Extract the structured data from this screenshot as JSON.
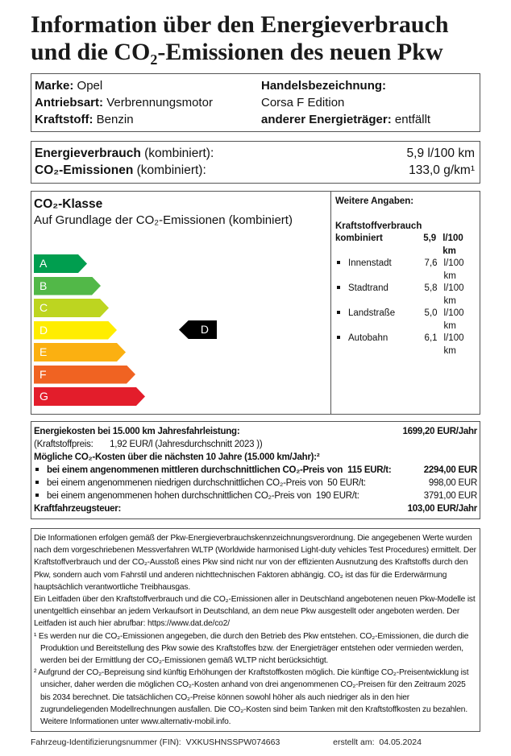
{
  "title": {
    "line1": "Information über den Energieverbrauch",
    "line2": "und die CO₂-Emissionen des neuen Pkw"
  },
  "vehicle": {
    "marke_label": "Marke:",
    "marke": "Opel",
    "antrieb_label": "Antriebsart:",
    "antrieb": "Verbrennungsmotor",
    "kraftstoff_label": "Kraftstoff:",
    "kraftstoff": "Benzin",
    "handels_label": "Handelsbezeichnung:",
    "handels": "Corsa F Edition",
    "anderer_label": "anderer Energieträger:",
    "anderer": "entfällt"
  },
  "summary": {
    "energie_label": "Energieverbrauch",
    "energie_suffix": "(kombiniert):",
    "energie_value": "5,9",
    "energie_unit": "l/100 km",
    "co2_label": "CO₂-Emissionen",
    "co2_suffix": "(kombiniert):",
    "co2_value": "133,0",
    "co2_unit": "g/km¹"
  },
  "co2_class": {
    "heading": "CO₂-Klasse",
    "subheading": "Auf Grundlage der CO₂-Emissionen (kombiniert)",
    "classes": [
      {
        "label": "A",
        "color": "#009e4f"
      },
      {
        "label": "B",
        "color": "#52b848"
      },
      {
        "label": "C",
        "color": "#bdd520"
      },
      {
        "label": "D",
        "color": "#ffed00"
      },
      {
        "label": "E",
        "color": "#fbb011"
      },
      {
        "label": "F",
        "color": "#f06322"
      },
      {
        "label": "G",
        "color": "#e31d2b"
      }
    ],
    "current": "D"
  },
  "weitere": {
    "heading": "Weitere Angaben:",
    "sub": "Kraftstoffverbrauch",
    "kombiniert_label": "kombiniert",
    "kombiniert_value": "5,9",
    "kombiniert_unit": "l/100 km",
    "items": [
      {
        "label": "Innenstadt",
        "value": "7,6",
        "unit": "l/100 km"
      },
      {
        "label": "Stadtrand",
        "value": "5,8",
        "unit": "l/100 km"
      },
      {
        "label": "Landstraße",
        "value": "5,0",
        "unit": "l/100 km"
      },
      {
        "label": "Autobahn",
        "value": "6,1",
        "unit": "l/100 km"
      }
    ]
  },
  "costs": {
    "energiekosten_label": "Energiekosten bei 15.000 km Jahresfahrleistung:",
    "energiekosten_value": "1699,20 EUR/Jahr",
    "preis_label": "(Kraftstoffpreis:",
    "preis_value": "1,92 EUR/l (Jahresdurchschnitt 2023 ))",
    "co2_heading": "Mögliche CO₂-Kosten über die nächsten 10 Jahre (15.000 km/Jahr):²",
    "scenarios": [
      {
        "text": "bei einem angenommenen mittleren durchschnittlichen CO₂-Preis von",
        "price": "115",
        "unit": "EUR/t:",
        "value": "2294,00 EUR"
      },
      {
        "text": "bei einem angenommenen niedrigen durchschnittlichen CO₂-Preis von",
        "price": "50",
        "unit": "EUR/t:",
        "value": "998,00 EUR"
      },
      {
        "text": "bei einem angenommenen hohen durchschnittlichen CO₂-Preis von",
        "price": "190",
        "unit": "EUR/t:",
        "value": "3791,00 EUR"
      }
    ],
    "steuer_label": "Kraftfahrzeugsteuer:",
    "steuer_value": "103,00 EUR/Jahr"
  },
  "info": {
    "p1": "Die Informationen erfolgen gemäß der Pkw-Energieverbrauchskennzeichnungsverordnung. Die angegebenen Werte wurden nach dem vorgeschriebenen Messverfahren WLTP (Worldwide harmonised Light-duty vehicles Test Procedures) ermittelt. Der Kraftstoffverbrauch und der CO₂-Ausstoß eines Pkw sind nicht nur von der effizienten Ausnutzung des Kraftstoffs durch den Pkw, sondern auch vom Fahrstil und anderen nichttechnischen Faktoren abhängig. CO₂ ist das für die Erderwärmung hauptsächlich verantwortliche Treibhausgas.",
    "p2": "Ein Leitfaden über den Kraftstoffverbrauch und die CO₂-Emissionen aller in Deutschland angebotenen neuen Pkw-Modelle ist unentgeltlich einsehbar an jedem Verkaufsort in Deutschland, an dem neue Pkw ausgestellt oder angeboten werden. Der Leitfaden ist auch hier abrufbar:  https://www.dat.de/co2/",
    "fn1": "¹ Es werden nur die CO₂-Emissionen angegeben, die durch den Betrieb des Pkw entstehen. CO₂-Emissionen, die durch die Produktion und Bereitstellung des Pkw sowie des Kraftstoffes bzw. der Energieträger entstehen oder vermieden werden, werden bei der Ermittlung der CO₂-Emissionen gemäß WLTP nicht berücksichtigt.",
    "fn2": "² Aufgrund der CO₂-Bepreisung sind künftig Erhöhungen der Kraftstoffkosten möglich. Die künftige CO₂-Preisentwicklung ist unsicher, daher werden die möglichen CO₂-Kosten anhand von drei angenommenen CO₂-Preisen für den Zeitraum  2025 bis  2034  berechnet. Die tatsächlichen CO₂-Preise können sowohl höher als auch niedriger als in den hier zugrundeliegenden Modellrechnungen ausfallen. Die CO₂-Kosten sind beim Tanken mit den Kraftstoffkosten zu bezahlen. Weitere Informationen unter www.alternativ-mobil.info."
  },
  "footer": {
    "fin_label": "Fahrzeug-Identifizierungsnummer (FIN):",
    "fin": "VXKUSHNSSPW074663",
    "date_label": "erstellt am:",
    "date": "04.05.2024"
  }
}
